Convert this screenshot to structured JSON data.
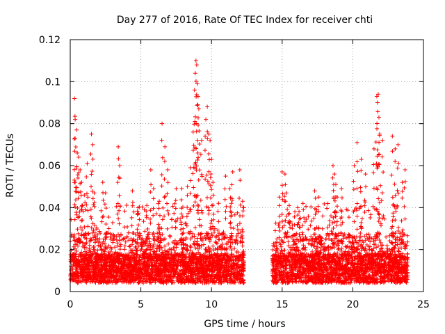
{
  "chart_data": {
    "type": "scatter",
    "title": "Day 277 of 2016, Rate Of TEC Index for receiver chti",
    "xlabel": "GPS time / hours",
    "ylabel": "ROTI / TECUs",
    "xlim": [
      0,
      25
    ],
    "ylim": [
      0,
      0.12
    ],
    "xticks": [
      0,
      5,
      10,
      15,
      20,
      25
    ],
    "xtick_labels": [
      "0",
      "5",
      "10",
      "15",
      "20",
      "25"
    ],
    "yticks": [
      0,
      0.02,
      0.04,
      0.06,
      0.08,
      0.1,
      0.12
    ],
    "ytick_labels": [
      "0",
      "0.02",
      "0.04",
      "0.06",
      "0.08",
      "0.1",
      "0.12"
    ],
    "grid": true,
    "marker": "plus",
    "color": "#ff0000",
    "data_gap_hours": [
      12.3,
      14.3
    ],
    "series": [
      {
        "name": "ROTI",
        "x": [
          0.3,
          0.35,
          0.45,
          0.5,
          0.6,
          0.7,
          0.8,
          1.0,
          1.2,
          1.5,
          1.6,
          1.7,
          2.3,
          2.5,
          3.4,
          3.5,
          4.4,
          4.8,
          5.7,
          5.9,
          6.3,
          6.5,
          6.7,
          6.9,
          7.5,
          7.9,
          8.3,
          8.5,
          8.7,
          8.8,
          8.85,
          8.9,
          8.95,
          9.0,
          9.05,
          9.1,
          9.3,
          9.6,
          9.7,
          9.8,
          9.9,
          10.0,
          10.1,
          10.5,
          11.0,
          11.3,
          11.4,
          11.5,
          12.0,
          12.2,
          14.8,
          15.0,
          15.2,
          15.3,
          15.5,
          15.9,
          16.1,
          16.5,
          17.3,
          17.6,
          18.6,
          18.7,
          18.8,
          18.9,
          19.2,
          20.1,
          20.3,
          20.6,
          20.9,
          21.5,
          21.7,
          21.75,
          21.8,
          21.85,
          21.9,
          22.1,
          22.8,
          23.0,
          23.2,
          23.5,
          23.7
        ],
        "y": [
          0.092,
          0.082,
          0.077,
          0.066,
          0.064,
          0.058,
          0.052,
          0.046,
          0.061,
          0.075,
          0.07,
          0.047,
          0.052,
          0.047,
          0.069,
          0.06,
          0.048,
          0.04,
          0.058,
          0.049,
          0.043,
          0.08,
          0.069,
          0.058,
          0.049,
          0.049,
          0.05,
          0.059,
          0.076,
          0.096,
          0.104,
          0.11,
          0.108,
          0.099,
          0.093,
          0.087,
          0.072,
          0.082,
          0.088,
          0.075,
          0.072,
          0.063,
          0.052,
          0.042,
          0.055,
          0.049,
          0.042,
          0.057,
          0.058,
          0.043,
          0.045,
          0.057,
          0.056,
          0.047,
          0.041,
          0.038,
          0.04,
          0.039,
          0.048,
          0.045,
          0.06,
          0.056,
          0.051,
          0.045,
          0.049,
          0.06,
          0.071,
          0.063,
          0.056,
          0.068,
          0.093,
          0.09,
          0.094,
          0.083,
          0.075,
          0.072,
          0.074,
          0.068,
          0.07,
          0.052,
          0.058
        ]
      }
    ]
  }
}
